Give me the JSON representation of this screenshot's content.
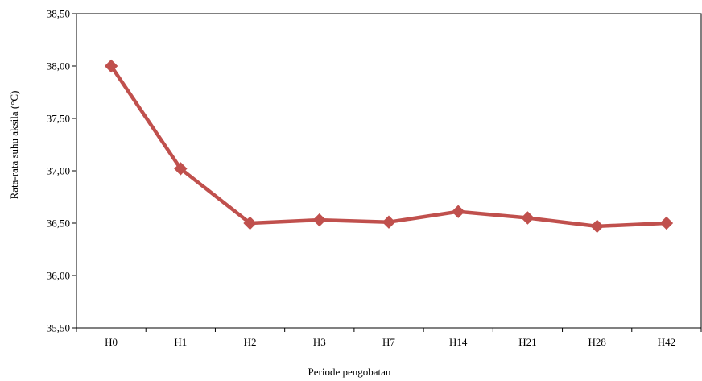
{
  "chart_data": {
    "type": "line",
    "title": "",
    "xlabel": "Periode pengobatan",
    "ylabel": "Rata-rata suhu aksila (°C)",
    "categories": [
      "H0",
      "H1",
      "H2",
      "H3",
      "H7",
      "H14",
      "H21",
      "H28",
      "H42"
    ],
    "series": [
      {
        "values": [
          38.0,
          37.02,
          36.5,
          36.53,
          36.51,
          36.61,
          36.55,
          36.47,
          36.5
        ],
        "color": "#C0504D",
        "marker": "diamond"
      }
    ],
    "ylim": [
      35.5,
      38.5
    ],
    "yticks": [
      35.5,
      36.0,
      36.5,
      37.0,
      37.5,
      38.0,
      38.5
    ],
    "ytick_labels": [
      "35,50",
      "36,00",
      "36,50",
      "37,00",
      "37,50",
      "38,00",
      "38,50"
    ],
    "grid": false,
    "legend": "none"
  }
}
